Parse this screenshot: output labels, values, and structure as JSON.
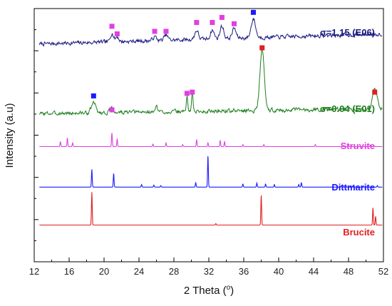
{
  "chart_data": {
    "type": "line",
    "xlabel": "2 Theta (°)",
    "xlabel_main": "2 Theta (",
    "xlabel_unit": "o",
    "xlabel_close": ")",
    "ylabel": "Intensity (a.u)",
    "xlim": [
      12,
      52
    ],
    "x_ticks": [
      12,
      16,
      20,
      24,
      28,
      32,
      36,
      40,
      44,
      48,
      52
    ],
    "y_ticks_labeled": false,
    "grid": false,
    "series": [
      {
        "name": "σ=1.15 (E06)",
        "color": "#1a1a80",
        "kind": "noisy",
        "baseline": 0.86,
        "noise": 0.012,
        "seed": 7,
        "peaks": [
          {
            "x": 20.9,
            "h": 0.035,
            "w": 0.25
          },
          {
            "x": 21.5,
            "h": 0.02,
            "w": 0.25
          },
          {
            "x": 25.8,
            "h": 0.015,
            "w": 0.3
          },
          {
            "x": 27.1,
            "h": 0.02,
            "w": 0.3
          },
          {
            "x": 30.6,
            "h": 0.035,
            "w": 0.3
          },
          {
            "x": 32.4,
            "h": 0.035,
            "w": 0.3
          },
          {
            "x": 33.5,
            "h": 0.05,
            "w": 0.3
          },
          {
            "x": 34.9,
            "h": 0.04,
            "w": 0.3
          },
          {
            "x": 37.1,
            "h": 0.075,
            "w": 0.35
          }
        ],
        "trend": [
          [
            12.5,
            0.0
          ],
          [
            52,
            0.04
          ]
        ]
      },
      {
        "name": "σ=0.04 (E01)",
        "color": "#1e7d1e",
        "kind": "noisy",
        "baseline": 0.585,
        "noise": 0.012,
        "seed": 3,
        "peaks": [
          {
            "x": 18.8,
            "h": 0.04,
            "w": 0.35
          },
          {
            "x": 20.9,
            "h": 0.015,
            "w": 0.3
          },
          {
            "x": 26.0,
            "h": 0.03,
            "w": 0.12
          },
          {
            "x": 29.5,
            "h": 0.06,
            "w": 0.12
          },
          {
            "x": 30.1,
            "h": 0.075,
            "w": 0.12
          },
          {
            "x": 38.1,
            "h": 0.24,
            "w": 0.35
          },
          {
            "x": 51.0,
            "h": 0.08,
            "w": 0.35
          }
        ],
        "trend": [
          [
            12.5,
            0.0
          ],
          [
            52,
            0.02
          ]
        ]
      },
      {
        "name": "Struvite",
        "color": "#e040e0",
        "kind": "sharp",
        "baseline": 0.455,
        "peaks": [
          {
            "x": 15.0,
            "h": 0.02
          },
          {
            "x": 15.8,
            "h": 0.035
          },
          {
            "x": 16.4,
            "h": 0.015
          },
          {
            "x": 20.9,
            "h": 0.055
          },
          {
            "x": 21.5,
            "h": 0.03
          },
          {
            "x": 25.6,
            "h": 0.01
          },
          {
            "x": 27.1,
            "h": 0.015
          },
          {
            "x": 29.0,
            "h": 0.008
          },
          {
            "x": 30.6,
            "h": 0.028
          },
          {
            "x": 31.9,
            "h": 0.015
          },
          {
            "x": 33.3,
            "h": 0.025
          },
          {
            "x": 33.8,
            "h": 0.02
          },
          {
            "x": 35.9,
            "h": 0.008
          },
          {
            "x": 38.3,
            "h": 0.008
          },
          {
            "x": 44.2,
            "h": 0.008
          },
          {
            "x": 48.0,
            "h": 0.006
          },
          {
            "x": 50.5,
            "h": 0.006
          }
        ]
      },
      {
        "name": "Dittmarite",
        "color": "#1a1aff",
        "kind": "sharp",
        "baseline": 0.295,
        "peaks": [
          {
            "x": 18.6,
            "h": 0.07
          },
          {
            "x": 21.1,
            "h": 0.055
          },
          {
            "x": 24.3,
            "h": 0.01
          },
          {
            "x": 25.7,
            "h": 0.008
          },
          {
            "x": 26.5,
            "h": 0.006
          },
          {
            "x": 30.5,
            "h": 0.018
          },
          {
            "x": 31.9,
            "h": 0.125
          },
          {
            "x": 35.9,
            "h": 0.012
          },
          {
            "x": 37.5,
            "h": 0.016
          },
          {
            "x": 38.5,
            "h": 0.012
          },
          {
            "x": 39.5,
            "h": 0.01
          },
          {
            "x": 42.3,
            "h": 0.01
          },
          {
            "x": 42.6,
            "h": 0.018
          },
          {
            "x": 47.2,
            "h": 0.006
          },
          {
            "x": 48.6,
            "h": 0.008
          },
          {
            "x": 51.3,
            "h": 0.006
          }
        ]
      },
      {
        "name": "Brucite",
        "color": "#e02020",
        "kind": "sharp",
        "baseline": 0.145,
        "peaks": [
          {
            "x": 18.6,
            "h": 0.13
          },
          {
            "x": 32.8,
            "h": 0.006
          },
          {
            "x": 38.0,
            "h": 0.12
          },
          {
            "x": 50.8,
            "h": 0.07
          },
          {
            "x": 51.1,
            "h": 0.035
          }
        ]
      }
    ],
    "markers": [
      {
        "series": "σ=1.15 (E06)",
        "phase": "Struvite",
        "x": 20.9,
        "y": 0.93,
        "color": "#e040e0"
      },
      {
        "series": "σ=1.15 (E06)",
        "phase": "Struvite",
        "x": 21.5,
        "y": 0.9,
        "color": "#e040e0"
      },
      {
        "series": "σ=1.15 (E06)",
        "phase": "Struvite",
        "x": 25.8,
        "y": 0.91,
        "color": "#e040e0"
      },
      {
        "series": "σ=1.15 (E06)",
        "phase": "Struvite",
        "x": 27.1,
        "y": 0.91,
        "color": "#e040e0"
      },
      {
        "series": "σ=1.15 (E06)",
        "phase": "Struvite",
        "x": 30.6,
        "y": 0.945,
        "color": "#e040e0"
      },
      {
        "series": "σ=1.15 (E06)",
        "phase": "Struvite",
        "x": 32.4,
        "y": 0.945,
        "color": "#e040e0"
      },
      {
        "series": "σ=1.15 (E06)",
        "phase": "Struvite",
        "x": 33.5,
        "y": 0.965,
        "color": "#e040e0"
      },
      {
        "series": "σ=1.15 (E06)",
        "phase": "Struvite",
        "x": 34.9,
        "y": 0.94,
        "color": "#e040e0"
      },
      {
        "series": "σ=1.15 (E06)",
        "phase": "Dittmarite",
        "x": 37.1,
        "y": 0.985,
        "color": "#1a1aff"
      },
      {
        "series": "σ=0.04 (E01)",
        "phase": "Dittmarite",
        "x": 18.8,
        "y": 0.655,
        "color": "#1a1aff"
      },
      {
        "series": "σ=0.04 (E01)",
        "phase": "Struvite",
        "x": 20.9,
        "y": 0.6,
        "color": "#e040e0"
      },
      {
        "series": "σ=0.04 (E01)",
        "phase": "Struvite",
        "x": 29.5,
        "y": 0.665,
        "color": "#e040e0"
      },
      {
        "series": "σ=0.04 (E01)",
        "phase": "Struvite",
        "x": 30.1,
        "y": 0.67,
        "color": "#e040e0"
      },
      {
        "series": "σ=0.04 (E01)",
        "phase": "Brucite",
        "x": 38.1,
        "y": 0.845,
        "color": "#e02020"
      },
      {
        "series": "σ=0.04 (E01)",
        "phase": "Brucite",
        "x": 51.0,
        "y": 0.67,
        "color": "#e02020"
      }
    ],
    "labels": [
      {
        "text": "σ=1.15 (E06)",
        "color": "#1a1a80"
      },
      {
        "text": "σ=0.04 (E01)",
        "color": "#1e7d1e"
      },
      {
        "text": "Struvite",
        "color": "#e040e0"
      },
      {
        "text": "Dittmarite",
        "color": "#1a1aff"
      },
      {
        "text": "Brucite",
        "color": "#e02020"
      }
    ]
  }
}
